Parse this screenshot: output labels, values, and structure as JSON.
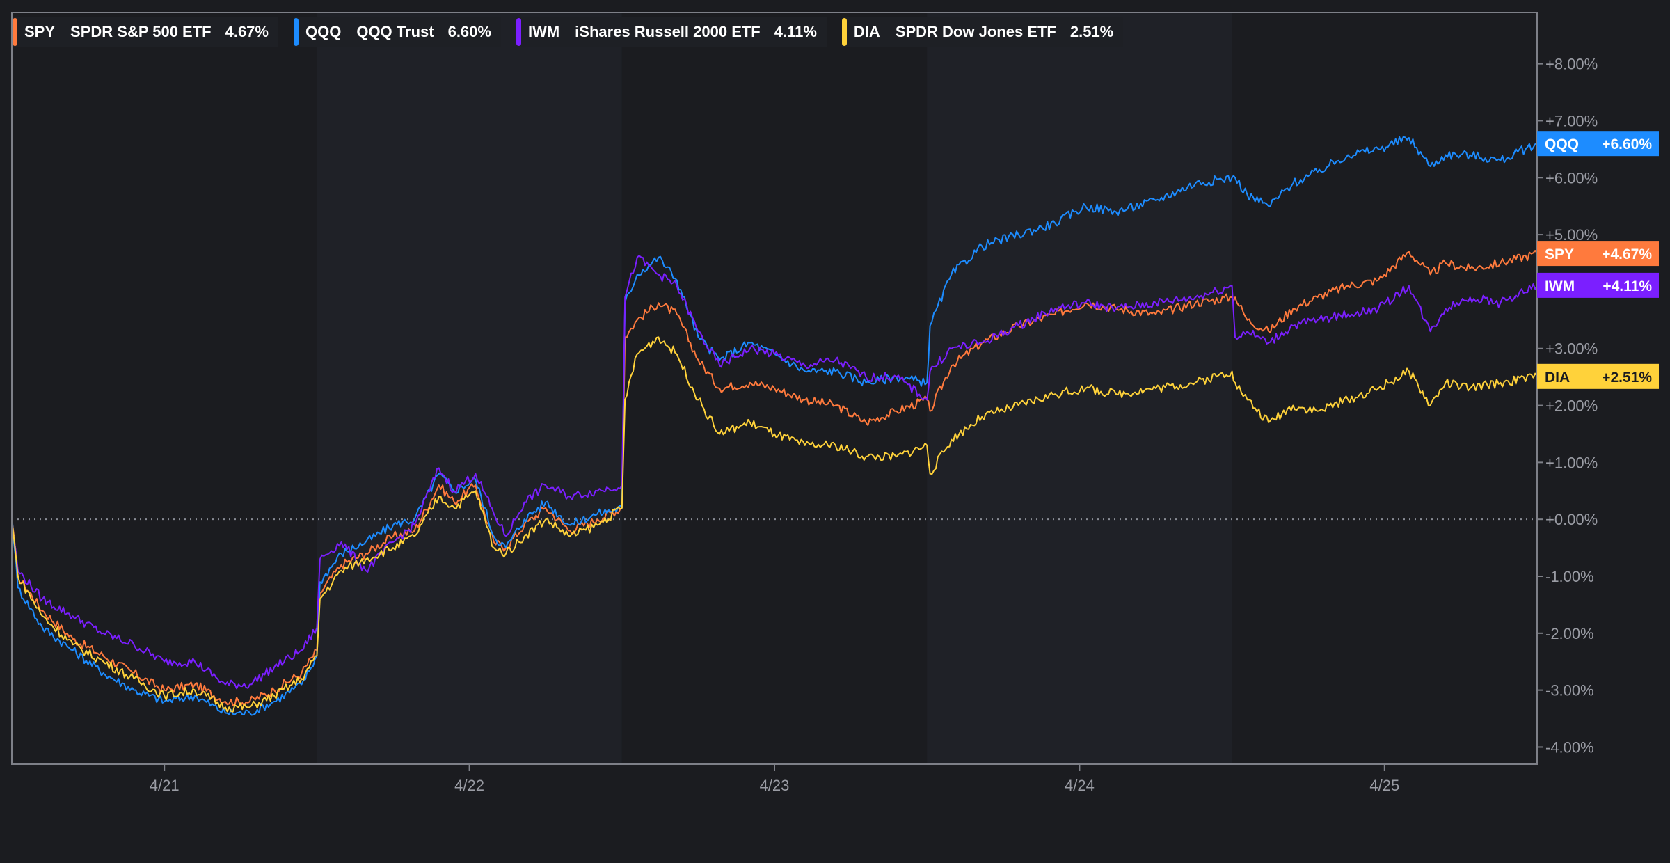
{
  "legend": [
    {
      "ticker": "SPY",
      "name": "SPDR S&P 500 ETF",
      "value": "4.67%",
      "color": "#ff7a3d"
    },
    {
      "ticker": "QQQ",
      "name": "QQQ Trust",
      "value": "6.60%",
      "color": "#1d8cff"
    },
    {
      "ticker": "IWM",
      "name": "iShares Russell 2000 ETF",
      "value": "4.11%",
      "color": "#7b1fff"
    },
    {
      "ticker": "DIA",
      "name": "SPDR Dow Jones ETF",
      "value": "2.51%",
      "color": "#ffd23a"
    }
  ],
  "chart_data": {
    "type": "line",
    "x_tick_labels": [
      "4/21",
      "4/22",
      "4/23",
      "4/24",
      "4/25"
    ],
    "y_tick_labels": [
      "+8.00%",
      "+7.00%",
      "+6.00%",
      "+5.00%",
      "+4.00%",
      "+3.00%",
      "+2.00%",
      "+1.00%",
      "+0.00%",
      "-1.00%",
      "-2.00%",
      "-3.00%",
      "-4.00%"
    ],
    "ylim": [
      -4.3,
      8.9
    ],
    "x_domain": [
      0,
      5
    ],
    "x_tick_positions": [
      0.5,
      1.5,
      2.5,
      3.5,
      4.5
    ],
    "day_separators": [
      1,
      2,
      3,
      4
    ],
    "grid": false,
    "zero_line": true,
    "series": [
      {
        "name": "SPY",
        "color": "#ff7a3d",
        "end_label": "+4.67%",
        "x": [
          0,
          0.02,
          0.1,
          0.2,
          0.3,
          0.4,
          0.5,
          0.6,
          0.7,
          0.78,
          0.86,
          0.95,
          1.0,
          1.01,
          1.08,
          1.16,
          1.25,
          1.32,
          1.4,
          1.45,
          1.52,
          1.58,
          1.62,
          1.68,
          1.75,
          1.83,
          1.92,
          2.0,
          2.01,
          2.05,
          2.12,
          2.18,
          2.25,
          2.32,
          2.42,
          2.5,
          2.6,
          2.7,
          2.8,
          2.9,
          3.0,
          3.01,
          3.08,
          3.18,
          3.3,
          3.42,
          3.52,
          3.62,
          3.75,
          3.88,
          4.0,
          4.01,
          4.05,
          4.12,
          4.2,
          4.28,
          4.38,
          4.48,
          4.58,
          4.65,
          4.7,
          4.78,
          4.88,
          5.0
        ],
        "y": [
          0,
          -1.0,
          -1.6,
          -2.1,
          -2.4,
          -2.7,
          -3.0,
          -2.9,
          -3.2,
          -3.2,
          -3.0,
          -2.7,
          -2.3,
          -1.3,
          -0.8,
          -0.6,
          -0.3,
          -0.2,
          0.6,
          0.3,
          0.6,
          -0.4,
          -0.5,
          -0.1,
          0.2,
          -0.2,
          0.0,
          0.2,
          3.2,
          3.5,
          3.8,
          3.6,
          2.8,
          2.3,
          2.4,
          2.3,
          2.1,
          2.0,
          1.7,
          1.9,
          2.1,
          1.9,
          2.7,
          3.1,
          3.4,
          3.6,
          3.8,
          3.7,
          3.6,
          3.8,
          3.9,
          3.9,
          3.5,
          3.3,
          3.7,
          3.9,
          4.1,
          4.2,
          4.7,
          4.3,
          4.5,
          4.4,
          4.5,
          4.67
        ]
      },
      {
        "name": "QQQ",
        "color": "#1d8cff",
        "end_label": "+6.60%",
        "x": [
          0,
          0.02,
          0.1,
          0.2,
          0.3,
          0.4,
          0.5,
          0.6,
          0.7,
          0.78,
          0.86,
          0.95,
          1.0,
          1.01,
          1.08,
          1.16,
          1.25,
          1.32,
          1.4,
          1.45,
          1.52,
          1.58,
          1.62,
          1.68,
          1.75,
          1.83,
          1.92,
          2.0,
          2.01,
          2.05,
          2.12,
          2.18,
          2.25,
          2.32,
          2.42,
          2.5,
          2.6,
          2.7,
          2.8,
          2.9,
          3.0,
          3.01,
          3.08,
          3.18,
          3.3,
          3.42,
          3.52,
          3.62,
          3.75,
          3.88,
          4.0,
          4.01,
          4.05,
          4.12,
          4.2,
          4.28,
          4.38,
          4.48,
          4.58,
          4.65,
          4.7,
          4.78,
          4.88,
          5.0
        ],
        "y": [
          0.1,
          -1.2,
          -1.9,
          -2.3,
          -2.7,
          -3.0,
          -3.2,
          -3.1,
          -3.4,
          -3.4,
          -3.2,
          -2.9,
          -2.4,
          -1.1,
          -0.6,
          -0.4,
          -0.1,
          0.0,
          0.8,
          0.5,
          0.7,
          -0.3,
          -0.5,
          0.0,
          0.3,
          -0.1,
          0.1,
          0.2,
          3.8,
          4.3,
          4.6,
          4.2,
          3.2,
          2.8,
          3.1,
          2.9,
          2.6,
          2.6,
          2.4,
          2.5,
          2.4,
          3.4,
          4.3,
          4.8,
          5.0,
          5.2,
          5.5,
          5.4,
          5.6,
          5.9,
          6.0,
          6.0,
          5.7,
          5.5,
          5.9,
          6.1,
          6.4,
          6.5,
          6.7,
          6.2,
          6.4,
          6.4,
          6.3,
          6.6
        ]
      },
      {
        "name": "IWM",
        "color": "#7b1fff",
        "end_label": "+4.11%",
        "x": [
          0,
          0.02,
          0.1,
          0.2,
          0.3,
          0.4,
          0.5,
          0.6,
          0.7,
          0.78,
          0.86,
          0.95,
          1.0,
          1.01,
          1.08,
          1.16,
          1.25,
          1.32,
          1.4,
          1.45,
          1.52,
          1.58,
          1.62,
          1.68,
          1.75,
          1.83,
          1.92,
          2.0,
          2.01,
          2.05,
          2.12,
          2.18,
          2.25,
          2.32,
          2.42,
          2.5,
          2.6,
          2.7,
          2.8,
          2.9,
          3.0,
          3.01,
          3.08,
          3.18,
          3.3,
          3.42,
          3.52,
          3.62,
          3.75,
          3.88,
          4.0,
          4.01,
          4.05,
          4.12,
          4.2,
          4.28,
          4.38,
          4.48,
          4.58,
          4.65,
          4.7,
          4.78,
          4.88,
          5.0
        ],
        "y": [
          0,
          -0.9,
          -1.4,
          -1.7,
          -2.0,
          -2.2,
          -2.5,
          -2.5,
          -2.9,
          -2.9,
          -2.6,
          -2.3,
          -1.9,
          -0.7,
          -0.4,
          -0.9,
          -0.4,
          -0.1,
          0.9,
          0.5,
          0.8,
          0.1,
          -0.3,
          0.3,
          0.6,
          0.4,
          0.5,
          0.6,
          3.9,
          4.6,
          4.3,
          4.1,
          3.3,
          2.7,
          3.0,
          2.9,
          2.7,
          2.8,
          2.5,
          2.5,
          2.1,
          2.6,
          3.0,
          3.1,
          3.4,
          3.7,
          3.8,
          3.7,
          3.8,
          3.9,
          4.1,
          3.2,
          3.3,
          3.1,
          3.4,
          3.5,
          3.6,
          3.7,
          4.1,
          3.3,
          3.7,
          3.9,
          3.8,
          4.11
        ]
      },
      {
        "name": "DIA",
        "color": "#ffd23a",
        "end_label": "+2.51%",
        "x": [
          0,
          0.02,
          0.1,
          0.2,
          0.3,
          0.4,
          0.5,
          0.6,
          0.7,
          0.78,
          0.86,
          0.95,
          1.0,
          1.01,
          1.08,
          1.16,
          1.25,
          1.32,
          1.4,
          1.45,
          1.52,
          1.58,
          1.62,
          1.68,
          1.75,
          1.83,
          1.92,
          2.0,
          2.01,
          2.05,
          2.12,
          2.18,
          2.25,
          2.32,
          2.42,
          2.5,
          2.6,
          2.7,
          2.8,
          2.9,
          3.0,
          3.01,
          3.08,
          3.18,
          3.3,
          3.42,
          3.52,
          3.62,
          3.75,
          3.88,
          4.0,
          4.01,
          4.05,
          4.12,
          4.2,
          4.28,
          4.38,
          4.48,
          4.58,
          4.65,
          4.7,
          4.78,
          4.88,
          5.0
        ],
        "y": [
          0,
          -1.0,
          -1.7,
          -2.2,
          -2.5,
          -2.8,
          -3.1,
          -3.0,
          -3.3,
          -3.3,
          -3.1,
          -2.8,
          -2.4,
          -1.4,
          -0.9,
          -0.7,
          -0.5,
          -0.3,
          0.4,
          0.2,
          0.5,
          -0.5,
          -0.6,
          -0.3,
          0.0,
          -0.3,
          -0.1,
          0.2,
          2.1,
          2.9,
          3.2,
          2.9,
          2.1,
          1.5,
          1.7,
          1.5,
          1.3,
          1.3,
          1.1,
          1.1,
          1.3,
          0.8,
          1.4,
          1.8,
          2.0,
          2.2,
          2.3,
          2.2,
          2.3,
          2.4,
          2.6,
          2.4,
          2.1,
          1.7,
          2.0,
          1.9,
          2.1,
          2.3,
          2.6,
          2.0,
          2.4,
          2.3,
          2.4,
          2.51
        ]
      }
    ]
  }
}
